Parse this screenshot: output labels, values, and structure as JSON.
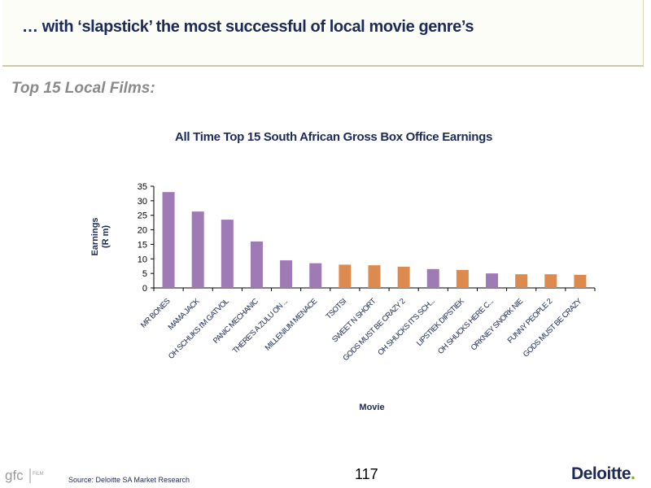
{
  "slide": {
    "title": "… with ‘slapstick’ the most successful of local movie genre’s",
    "section_heading": "Top 15 Local Films:"
  },
  "footer": {
    "source": "Source: Deloitte SA Market Research",
    "page_number": "117",
    "brand": "Deloitte",
    "brand_dot": ".",
    "logo_text": "gfc",
    "logo_subtext": "FILM"
  },
  "colors": {
    "purple": "#9e7bb5",
    "orange": "#dd8a4e",
    "title_navy": "#1c2a57"
  },
  "chart_data": {
    "type": "bar",
    "title": "All Time Top 15 South African Gross Box Office Earnings",
    "xlabel": "Movie",
    "ylabel": "Earnings (R m)",
    "ylabel_lines": [
      "Earnings",
      "(R m)"
    ],
    "ylim": [
      0,
      35
    ],
    "yticks": [
      0,
      5,
      10,
      15,
      20,
      25,
      30,
      35
    ],
    "grid": false,
    "categories": [
      "MR BONES",
      "MAMA JACK",
      "OH SCHUKS I'M GATVOL",
      "PANIC MECHANIC",
      "THERE'S A ZULU ON ...",
      "MILLENIUM MENACE",
      "TSOTSI",
      "SWEET N SHORT",
      "GODS MUST BE CRAZY 2",
      "OH SHUCKS IT'S SCH...",
      "LIPSTIEK DIPSTIEK",
      "OH SHUCKS HERE C...",
      "ORKNEY SNORK NIE",
      "FUNNY PEOPLE 2",
      "GODS MUST BE CRAZY"
    ],
    "values": [
      33,
      26.3,
      23.5,
      16,
      9.5,
      8.5,
      8,
      7.8,
      7.3,
      6.5,
      6.2,
      5,
      4.7,
      4.7,
      4.5
    ],
    "bar_colors": [
      "purple",
      "purple",
      "purple",
      "purple",
      "purple",
      "purple",
      "orange",
      "orange",
      "orange",
      "purple",
      "orange",
      "purple",
      "orange",
      "orange",
      "orange"
    ]
  }
}
